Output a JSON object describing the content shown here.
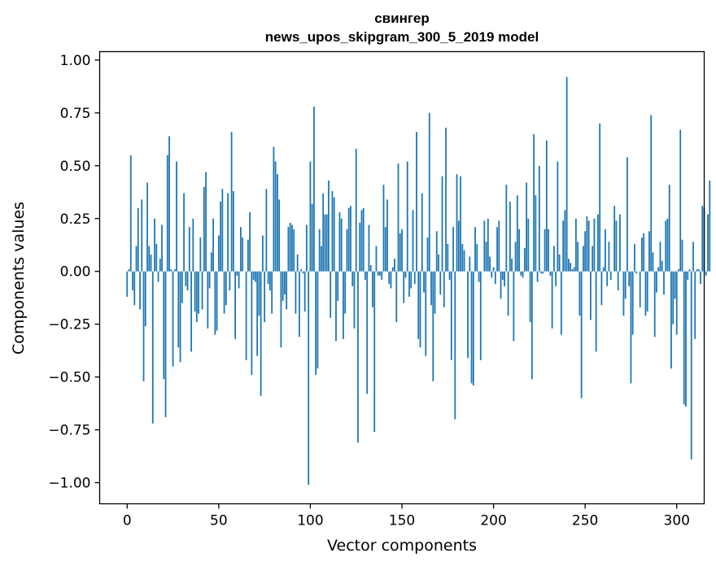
{
  "chart_data": {
    "type": "bar",
    "title": "свингер",
    "subtitle": "news_upos_skipgram_300_5_2019 model",
    "xlabel": "Vector components",
    "ylabel": "Components values",
    "xlim": [
      -15,
      315
    ],
    "ylim": [
      -1.1,
      1.04
    ],
    "xticks": [
      0,
      50,
      100,
      150,
      200,
      250,
      300
    ],
    "xtick_labels": [
      "0",
      "50",
      "100",
      "150",
      "200",
      "250",
      "300"
    ],
    "yticks": [
      -1.0,
      -0.75,
      -0.5,
      -0.25,
      0.0,
      0.25,
      0.5,
      0.75,
      1.0
    ],
    "ytick_labels": [
      "−1.00",
      "−0.75",
      "−0.50",
      "−0.25",
      "0.00",
      "0.25",
      "0.50",
      "0.75",
      "1.00"
    ],
    "bar_color": "#1f77b4",
    "grid": false,
    "values": [
      -0.12,
      0.01,
      0.55,
      -0.09,
      -0.16,
      0.12,
      0.3,
      -0.18,
      0.34,
      -0.52,
      -0.26,
      0.42,
      0.12,
      0.08,
      -0.72,
      0.25,
      0.13,
      -0.05,
      0.06,
      0.22,
      -0.51,
      -0.69,
      0.55,
      0.64,
      0.01,
      -0.45,
      0.01,
      0.52,
      -0.36,
      -0.43,
      -0.15,
      0.37,
      -0.07,
      -0.09,
      0.21,
      -0.38,
      0.25,
      -0.19,
      -0.24,
      -0.2,
      0.16,
      -0.18,
      0.4,
      0.47,
      -0.27,
      -0.08,
      0.09,
      0.25,
      -0.3,
      -0.28,
      0.17,
      0.33,
      0.39,
      -0.2,
      -0.16,
      0.37,
      -0.09,
      0.66,
      0.38,
      -0.32,
      -0.02,
      -0.08,
      0.21,
      0.16,
      0.0,
      -0.42,
      0.15,
      0.28,
      -0.49,
      -0.04,
      -0.05,
      -0.4,
      -0.21,
      -0.59,
      0.17,
      -0.24,
      0.39,
      -0.06,
      -0.09,
      -0.2,
      0.59,
      0.52,
      0.46,
      0.34,
      -0.36,
      -0.14,
      -0.11,
      -0.18,
      0.21,
      0.23,
      0.22,
      0.2,
      -0.2,
      0.08,
      -0.31,
      0.01,
      -0.01,
      -0.19,
      0.22,
      -1.01,
      0.52,
      0.32,
      0.78,
      -0.49,
      -0.46,
      0.2,
      0.12,
      0.37,
      0.27,
      0.27,
      0.43,
      -0.22,
      0.38,
      0.35,
      -0.33,
      -0.14,
      0.28,
      0.25,
      -0.32,
      -0.2,
      0.2,
      0.3,
      0.31,
      -0.07,
      -0.27,
      0.58,
      -0.81,
      0.23,
      0.29,
      0.3,
      -0.04,
      -0.58,
      0.22,
      0.03,
      -0.17,
      -0.76,
      0.12,
      -0.02,
      -0.02,
      -0.04,
      0.41,
      0.21,
      0.34,
      -0.06,
      -0.08,
      0.02,
      0.06,
      -0.24,
      0.51,
      0.18,
      0.2,
      -0.15,
      -0.03,
      0.52,
      -0.12,
      -0.08,
      0.29,
      -0.06,
      0.66,
      -0.32,
      -0.36,
      0.37,
      -0.1,
      -0.4,
      0.16,
      0.75,
      -0.16,
      -0.52,
      -0.2,
      0.19,
      0.08,
      -0.11,
      0.45,
      -0.17,
      0.68,
      0.13,
      -0.04,
      -0.42,
      0.21,
      -0.7,
      0.46,
      0.24,
      0.45,
      0.13,
      0.1,
      0.0,
      -0.41,
      0.07,
      -0.53,
      -0.54,
      0.21,
      0.13,
      -0.05,
      -0.42,
      0.0,
      0.24,
      0.14,
      0.25,
      0.07,
      -0.03,
      0.02,
      -0.06,
      0.21,
      0.24,
      -0.13,
      -0.04,
      -0.07,
      0.41,
      -0.21,
      0.33,
      0.06,
      -0.33,
      0.14,
      0.36,
      0.2,
      -0.02,
      -0.03,
      0.11,
      0.42,
      0.25,
      -0.24,
      -0.51,
      0.65,
      0.36,
      -0.05,
      0.5,
      -0.01,
      -0.01,
      0.2,
      0.62,
      0.2,
      -0.02,
      -0.27,
      0.12,
      -0.07,
      0.52,
      0.08,
      -0.3,
      0.24,
      0.29,
      0.92,
      0.06,
      0.04,
      0.01,
      0.02,
      0.25,
      0.14,
      -0.21,
      -0.6,
      0.12,
      0.19,
      0.26,
      0.24,
      -0.23,
      0.12,
      0.25,
      -0.38,
      0.27,
      0.7,
      -0.16,
      0.02,
      0.2,
      -0.07,
      0.14,
      -0.04,
      0.0,
      0.31,
      0.24,
      -0.09,
      0.27,
      0.0,
      -0.21,
      -0.13,
      0.54,
      -0.07,
      -0.53,
      -0.3,
      0.13,
      -0.01,
      0.0,
      -0.17,
      0.16,
      0.18,
      -0.21,
      -0.19,
      0.19,
      0.74,
      0.09,
      -0.31,
      -0.1,
      0.02,
      0.14,
      0.05,
      -0.11,
      0.24,
      0.25,
      0.41,
      -0.46,
      -0.25,
      -0.13,
      -0.3,
      0.01,
      0.67,
      0.15,
      -0.63,
      -0.64,
      -0.04,
      0.01,
      -0.89,
      0.14,
      -0.32,
      0.01,
      0.01,
      -0.06,
      0.31,
      0.3,
      -0.02,
      0.27,
      0.43
    ]
  }
}
